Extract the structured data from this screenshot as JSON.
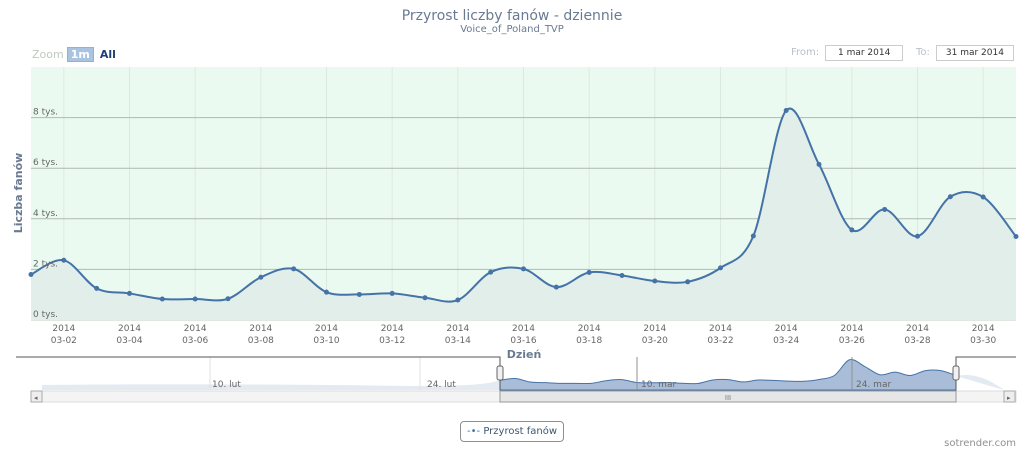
{
  "header": {
    "title": "Przyrost liczby fanów - dziennie",
    "subtitle": "Voice_of_Poland_TVP"
  },
  "range_selector": {
    "zoom_label": "Zoom",
    "buttons": [
      "1m",
      "All"
    ],
    "selected": "1m",
    "from_label": "From:",
    "from_value": "1 mar 2014",
    "to_label": "To:",
    "to_value": "31 mar 2014"
  },
  "colors": {
    "line": "#4572a7",
    "plot_bg": "#eafaf0",
    "area": "#e2eeea",
    "navigator_fill": "#a9bdd9"
  },
  "chart_data": {
    "type": "area",
    "title": "Przyrost liczby fanów - dziennie",
    "subtitle": "Voice_of_Poland_TVP",
    "xlabel": "Dzień",
    "ylabel": "Liczba fanów",
    "ylim": [
      0,
      10000
    ],
    "yticks": [
      {
        "v": 0,
        "label": "0 tys."
      },
      {
        "v": 2000,
        "label": "2 tys."
      },
      {
        "v": 4000,
        "label": "4 tys."
      },
      {
        "v": 6000,
        "label": "6 tys."
      },
      {
        "v": 8000,
        "label": "8 tys."
      }
    ],
    "xticks": [
      {
        "day": 2,
        "l1": "2014",
        "l2": "03-02"
      },
      {
        "day": 4,
        "l1": "2014",
        "l2": "03-04"
      },
      {
        "day": 6,
        "l1": "2014",
        "l2": "03-06"
      },
      {
        "day": 8,
        "l1": "2014",
        "l2": "03-08"
      },
      {
        "day": 10,
        "l1": "2014",
        "l2": "03-10"
      },
      {
        "day": 12,
        "l1": "2014",
        "l2": "03-12"
      },
      {
        "day": 14,
        "l1": "2014",
        "l2": "03-14"
      },
      {
        "day": 16,
        "l1": "2014",
        "l2": "03-16"
      },
      {
        "day": 18,
        "l1": "2014",
        "l2": "03-18"
      },
      {
        "day": 20,
        "l1": "2014",
        "l2": "03-20"
      },
      {
        "day": 22,
        "l1": "2014",
        "l2": "03-22"
      },
      {
        "day": 24,
        "l1": "2014",
        "l2": "03-24"
      },
      {
        "day": 26,
        "l1": "2014",
        "l2": "03-26"
      },
      {
        "day": 28,
        "l1": "2014",
        "l2": "03-28"
      },
      {
        "day": 30,
        "l1": "2014",
        "l2": "03-30"
      }
    ],
    "xlim": [
      "2014-03-01",
      "2014-03-31"
    ],
    "grid": true,
    "legend": "bottom-center",
    "series": [
      {
        "name": "Przyrost fanów",
        "x": [
          "2014-03-01",
          "2014-03-02",
          "2014-03-03",
          "2014-03-04",
          "2014-03-05",
          "2014-03-06",
          "2014-03-07",
          "2014-03-08",
          "2014-03-09",
          "2014-03-10",
          "2014-03-11",
          "2014-03-12",
          "2014-03-13",
          "2014-03-14",
          "2014-03-15",
          "2014-03-16",
          "2014-03-17",
          "2014-03-18",
          "2014-03-19",
          "2014-03-20",
          "2014-03-21",
          "2014-03-22",
          "2014-03-23",
          "2014-03-24",
          "2014-03-25",
          "2014-03-26",
          "2014-03-27",
          "2014-03-28",
          "2014-03-29",
          "2014-03-30",
          "2014-03-31"
        ],
        "values": [
          1800,
          2360,
          1250,
          1050,
          830,
          830,
          840,
          1690,
          2020,
          1100,
          1010,
          1050,
          880,
          790,
          1890,
          2020,
          1300,
          1880,
          1760,
          1540,
          1510,
          2060,
          3320,
          8280,
          6150,
          3560,
          4370,
          3310,
          4870,
          4860,
          3300
        ]
      }
    ]
  },
  "navigator": {
    "tick_labels": [
      "10. lut",
      "24. lut",
      "10. mar",
      "24. mar"
    ],
    "scrollbar_grip": "III"
  },
  "credit": "sotrender.com"
}
